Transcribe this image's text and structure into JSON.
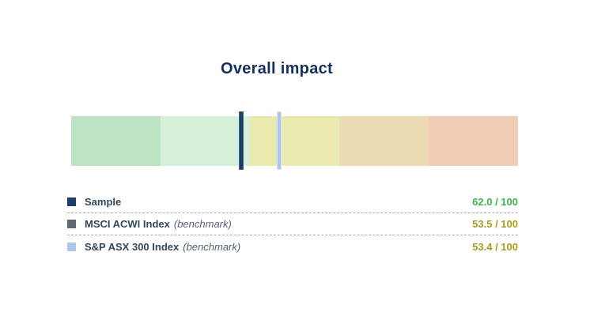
{
  "colors": {
    "title": "#16305c",
    "label": "#33475b",
    "qualifier": "#55606e",
    "separator": "#a4aab0"
  },
  "chart_data": {
    "type": "bar",
    "variant": "bullet-gauge",
    "title": "Overall impact",
    "axis": {
      "min": 0,
      "max": 100,
      "left_end_value": 100,
      "right_end_value": 0,
      "direction": "descending-left-to-right"
    },
    "bands": [
      {
        "name": "green",
        "color": "#bde2c4",
        "from": 100,
        "to": 80
      },
      {
        "name": "light-green",
        "color": "#d6f0d9",
        "from": 80,
        "to": 60
      },
      {
        "name": "yellow",
        "color": "#e9e9b0",
        "from": 60,
        "to": 40
      },
      {
        "name": "tan",
        "color": "#ecdcb3",
        "from": 40,
        "to": 20
      },
      {
        "name": "salmon",
        "color": "#f0ccb5",
        "from": 20,
        "to": 0
      }
    ],
    "series": [
      {
        "name": "Sample",
        "qualifier": "",
        "value": 62.0,
        "display": "62.0 / 100",
        "marker_color": "#1d3f66",
        "marker_edge": "#44618c",
        "value_color": "#3cb54a"
      },
      {
        "name": "MSCI ACWI Index",
        "qualifier": "(benchmark)",
        "value": 53.5,
        "display": "53.5 / 100",
        "marker_color": "#5f6973",
        "marker_edge": "#7c868f",
        "value_color": "#a89c1e"
      },
      {
        "name": "S&P ASX 300 Index",
        "qualifier": "(benchmark)",
        "value": 53.4,
        "display": "53.4 / 100",
        "marker_color": "#a9c7ec",
        "marker_edge": "#d8e6f7",
        "value_color": "#a89c1e"
      }
    ]
  }
}
